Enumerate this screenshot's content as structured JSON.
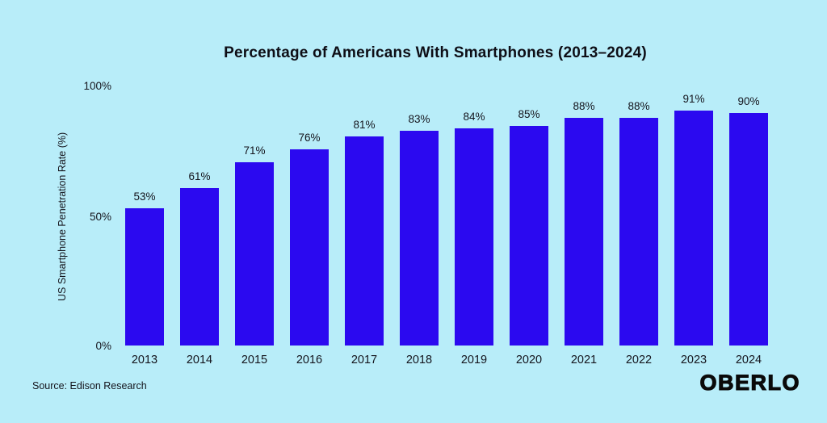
{
  "page": {
    "background_color": "#b8edf9",
    "text_color": "#14141c"
  },
  "title": "Percentage of Americans With Smartphones (2013–2024)",
  "source_note": "Source: Edison Research",
  "brand": "OBERLO",
  "chart_data": {
    "type": "bar",
    "title": "Percentage of Americans With Smartphones (2013–2024)",
    "categories": [
      "2013",
      "2014",
      "2015",
      "2016",
      "2017",
      "2018",
      "2019",
      "2020",
      "2021",
      "2022",
      "2023",
      "2024"
    ],
    "values": [
      53,
      61,
      71,
      76,
      81,
      83,
      84,
      85,
      88,
      88,
      91,
      90
    ],
    "value_labels": [
      "53%",
      "61%",
      "71%",
      "76%",
      "81%",
      "83%",
      "84%",
      "85%",
      "88%",
      "88%",
      "91%",
      "90%"
    ],
    "xlabel": "",
    "ylabel": "US Smartphone Penetration Rate (%)",
    "ylim": [
      0,
      100
    ],
    "yticks": [
      "0%",
      "50%",
      "100%"
    ],
    "grid": false,
    "legend": null,
    "bar_color": "#2b09f0"
  }
}
